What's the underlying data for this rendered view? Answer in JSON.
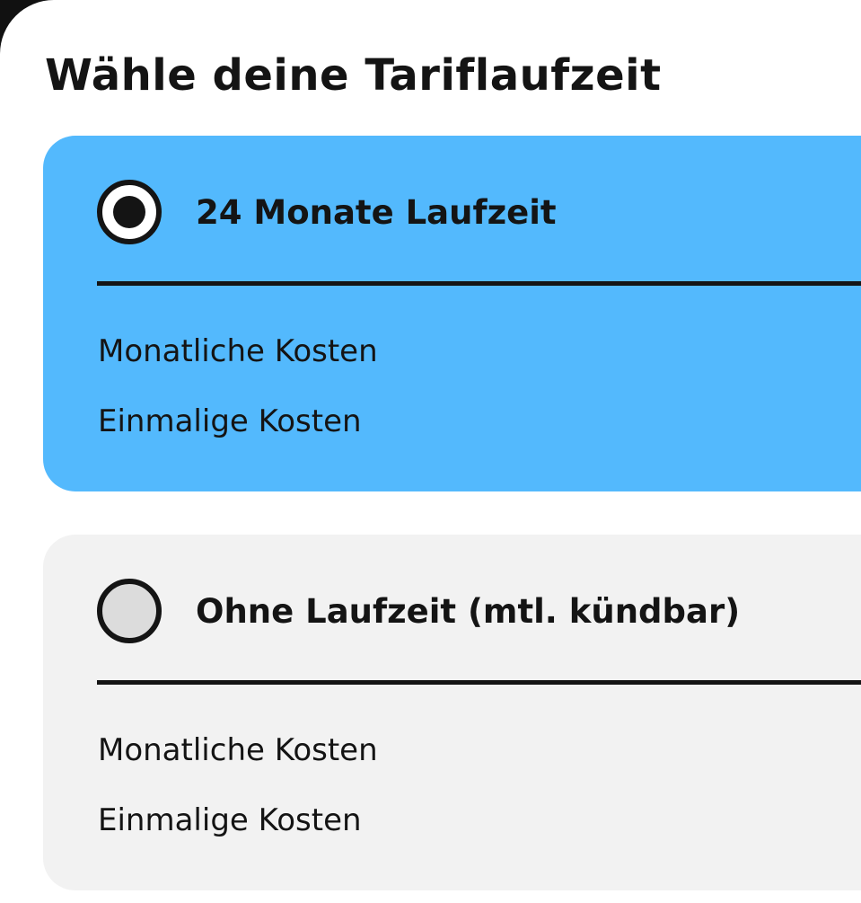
{
  "title": "Wähle deine Tariflaufzeit",
  "options": [
    {
      "label": "24 Monate Laufzeit",
      "selected": true,
      "rows": [
        "Monatliche Kosten",
        "Einmalige Kosten"
      ]
    },
    {
      "label": "Ohne Laufzeit (mtl. kündbar)",
      "selected": false,
      "rows": [
        "Monatliche Kosten",
        "Einmalige Kosten"
      ]
    }
  ],
  "colors": {
    "selected_card": "#53b9fd",
    "unselected_card": "#f2f2f2",
    "text": "#141414"
  }
}
